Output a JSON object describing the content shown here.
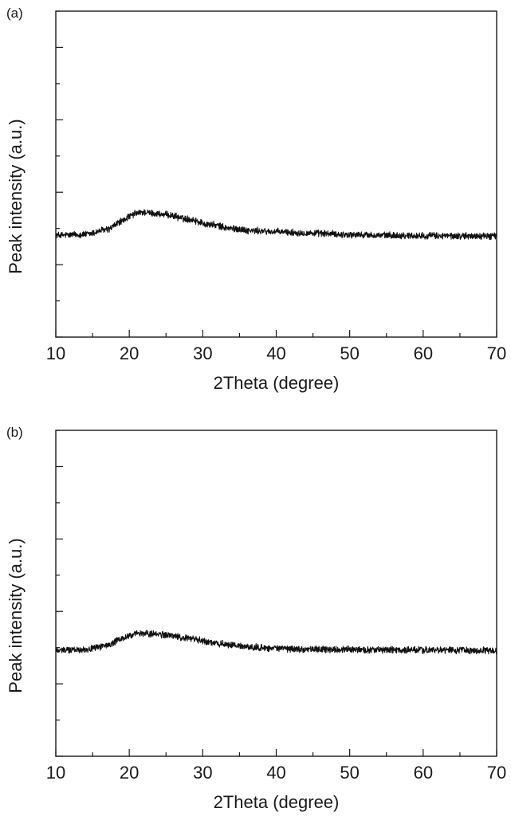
{
  "chart_data": [
    {
      "panel_label": "(a)",
      "type": "line",
      "xlabel": "2Theta (degree)",
      "ylabel": "Peak intensity (a.u.)",
      "xlim": [
        10,
        70
      ],
      "ylim": [
        0,
        1
      ],
      "x_ticks": [
        "10",
        "20",
        "30",
        "40",
        "50",
        "60",
        "70"
      ],
      "y_tick_labels_shown": false,
      "grid": false,
      "legend": "none",
      "line_color": "#111111",
      "series": [
        {
          "x": [
            10,
            14,
            17,
            19,
            20,
            21,
            22,
            23,
            25,
            28,
            31,
            34,
            37,
            40,
            43,
            46,
            50,
            55,
            60,
            65,
            70
          ],
          "y": [
            0.312,
            0.315,
            0.33,
            0.355,
            0.37,
            0.38,
            0.383,
            0.38,
            0.375,
            0.362,
            0.345,
            0.333,
            0.326,
            0.323,
            0.32,
            0.318,
            0.314,
            0.312,
            0.311,
            0.31,
            0.31
          ]
        }
      ]
    },
    {
      "panel_label": "(b)",
      "type": "line",
      "xlabel": "2Theta (degree)",
      "ylabel": "Peak intensity (a.u.)",
      "xlim": [
        10,
        70
      ],
      "ylim": [
        0,
        1
      ],
      "x_ticks": [
        "10",
        "20",
        "30",
        "40",
        "50",
        "60",
        "70"
      ],
      "y_tick_labels_shown": false,
      "grid": false,
      "legend": "none",
      "line_color": "#111111",
      "series": [
        {
          "x": [
            10,
            14,
            17,
            19,
            20,
            21,
            22,
            23,
            25,
            28,
            31,
            34,
            37,
            40,
            43,
            46,
            50,
            55,
            60,
            65,
            70
          ],
          "y": [
            0.325,
            0.328,
            0.34,
            0.36,
            0.37,
            0.375,
            0.377,
            0.376,
            0.372,
            0.362,
            0.35,
            0.34,
            0.334,
            0.331,
            0.329,
            0.328,
            0.327,
            0.326,
            0.326,
            0.325,
            0.325
          ]
        }
      ]
    }
  ]
}
